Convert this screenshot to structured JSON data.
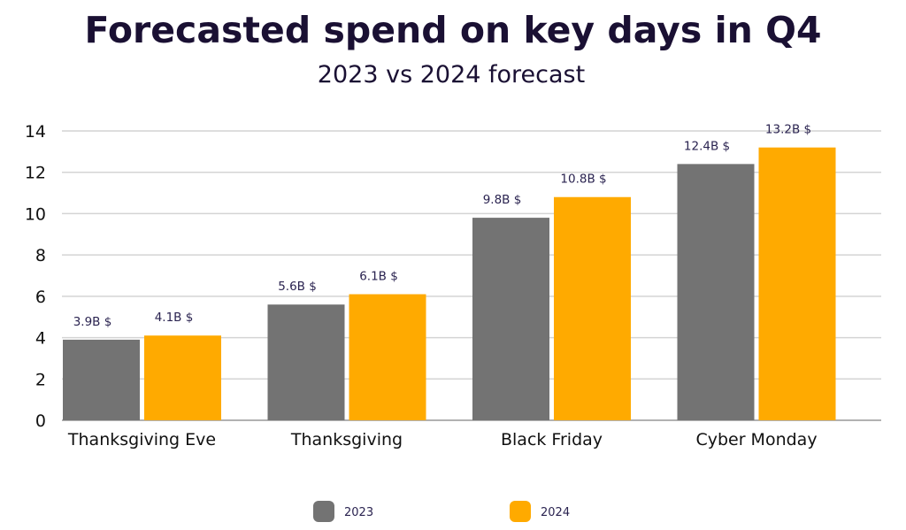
{
  "chart_data": {
    "type": "bar",
    "title": "Forecasted spend on key days in Q4",
    "subtitle": "2023 vs 2024 forecast",
    "categories": [
      "Thanksgiving Eve",
      "Thanksgiving",
      "Black Friday",
      "Cyber Monday"
    ],
    "series": [
      {
        "name": "2023",
        "values": [
          3.9,
          5.6,
          9.8,
          12.4
        ],
        "labels": [
          "3.9B $",
          "5.6B $",
          "9.8B $",
          "12.4B $"
        ],
        "color": "#737373"
      },
      {
        "name": "2024",
        "values": [
          4.1,
          6.1,
          10.8,
          13.2
        ],
        "labels": [
          "4.1B $",
          "6.1B $",
          "10.8B $",
          "13.2B $"
        ],
        "color": "#FFAA00"
      }
    ],
    "yticks": [
      0,
      2,
      4,
      6,
      8,
      10,
      12,
      14
    ],
    "ylim": [
      0,
      14
    ],
    "grid": true,
    "legend": "bottom"
  }
}
